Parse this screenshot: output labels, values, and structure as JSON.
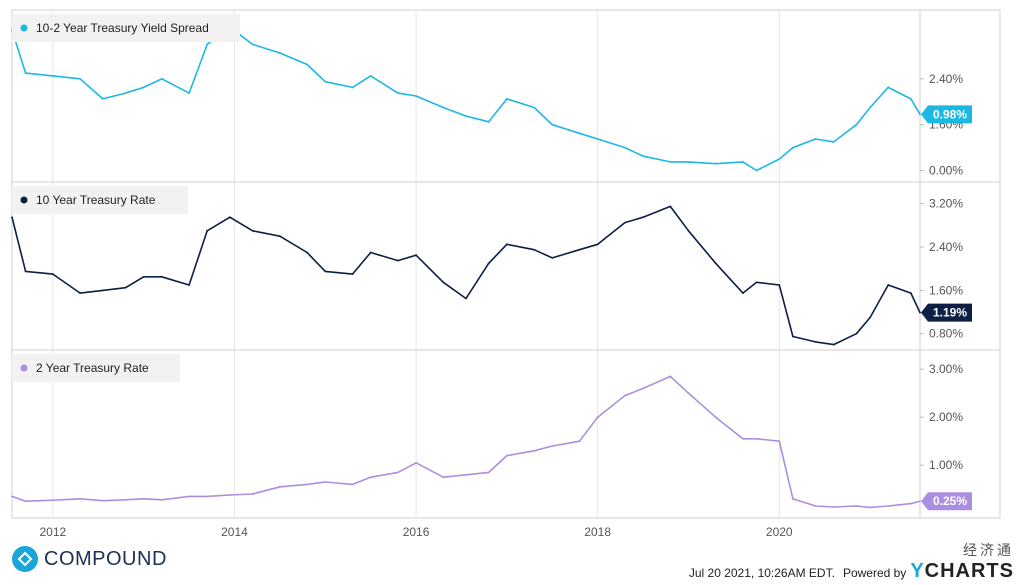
{
  "chart_data": [
    {
      "type": "line",
      "legend": "10-2 Year Treasury Yield Spread",
      "color": "#1cb8e4",
      "unit": "%",
      "ylim": [
        -0.2,
        2.8
      ],
      "yticks": [
        0.0,
        0.8,
        1.6,
        2.4
      ],
      "ytick_labels": [
        "0.00%",
        "1.60%",
        "2.40%"
      ],
      "last_value_label": "0.98%",
      "x": [
        2011.55,
        2011.7,
        2012.0,
        2012.3,
        2012.55,
        2012.8,
        2013.0,
        2013.2,
        2013.5,
        2013.7,
        2013.95,
        2014.2,
        2014.5,
        2014.8,
        2015.0,
        2015.3,
        2015.5,
        2015.8,
        2016.0,
        2016.3,
        2016.55,
        2016.8,
        2017.0,
        2017.3,
        2017.5,
        2017.8,
        2018.0,
        2018.3,
        2018.5,
        2018.8,
        2019.0,
        2019.3,
        2019.6,
        2019.75,
        2020.0,
        2020.15,
        2020.4,
        2020.6,
        2020.85,
        2021.0,
        2021.2,
        2021.45,
        2021.55
      ],
      "y": [
        2.45,
        1.7,
        1.65,
        1.6,
        1.25,
        1.35,
        1.45,
        1.6,
        1.35,
        2.2,
        2.5,
        2.2,
        2.05,
        1.85,
        1.55,
        1.45,
        1.65,
        1.35,
        1.3,
        1.1,
        0.95,
        0.85,
        1.25,
        1.1,
        0.8,
        0.65,
        0.55,
        0.4,
        0.25,
        0.15,
        0.15,
        0.12,
        0.15,
        0.0,
        0.2,
        0.4,
        0.55,
        0.5,
        0.8,
        1.1,
        1.45,
        1.25,
        0.98
      ]
    },
    {
      "type": "line",
      "legend": "10 Year Treasury Rate",
      "color": "#0d1f44",
      "unit": "%",
      "ylim": [
        0.5,
        3.6
      ],
      "yticks": [
        0.8,
        1.6,
        2.4,
        3.2
      ],
      "ytick_labels": [
        "0.80%",
        "1.60%",
        "2.40%",
        "3.20%"
      ],
      "last_value_label": "1.19%",
      "x": [
        2011.55,
        2011.7,
        2012.0,
        2012.3,
        2012.55,
        2012.8,
        2013.0,
        2013.2,
        2013.5,
        2013.7,
        2013.95,
        2014.2,
        2014.5,
        2014.8,
        2015.0,
        2015.3,
        2015.5,
        2015.8,
        2016.0,
        2016.3,
        2016.55,
        2016.8,
        2017.0,
        2017.3,
        2017.5,
        2017.8,
        2018.0,
        2018.3,
        2018.5,
        2018.8,
        2019.0,
        2019.3,
        2019.6,
        2019.75,
        2020.0,
        2020.15,
        2020.4,
        2020.6,
        2020.85,
        2021.0,
        2021.2,
        2021.45,
        2021.55
      ],
      "y": [
        2.95,
        1.95,
        1.9,
        1.55,
        1.6,
        1.65,
        1.85,
        1.85,
        1.7,
        2.7,
        2.95,
        2.7,
        2.6,
        2.3,
        1.95,
        1.9,
        2.3,
        2.15,
        2.25,
        1.75,
        1.45,
        2.1,
        2.45,
        2.35,
        2.2,
        2.35,
        2.45,
        2.85,
        2.95,
        3.15,
        2.7,
        2.1,
        1.55,
        1.75,
        1.7,
        0.75,
        0.65,
        0.6,
        0.8,
        1.1,
        1.7,
        1.55,
        1.19
      ]
    },
    {
      "type": "line",
      "legend": "2 Year Treasury Rate",
      "color": "#ab8fde",
      "unit": "%",
      "ylim": [
        -0.1,
        3.4
      ],
      "yticks": [
        1.0,
        2.0,
        3.0
      ],
      "ytick_labels": [
        "1.00%",
        "2.00%",
        "3.00%"
      ],
      "last_value_label": "0.25%",
      "x": [
        2011.55,
        2011.7,
        2012.0,
        2012.3,
        2012.55,
        2012.8,
        2013.0,
        2013.2,
        2013.5,
        2013.7,
        2013.95,
        2014.2,
        2014.5,
        2014.8,
        2015.0,
        2015.3,
        2015.5,
        2015.8,
        2016.0,
        2016.3,
        2016.55,
        2016.8,
        2017.0,
        2017.3,
        2017.5,
        2017.8,
        2018.0,
        2018.3,
        2018.5,
        2018.8,
        2019.0,
        2019.3,
        2019.6,
        2019.75,
        2020.0,
        2020.15,
        2020.4,
        2020.6,
        2020.85,
        2021.0,
        2021.2,
        2021.45,
        2021.55
      ],
      "y": [
        0.35,
        0.25,
        0.27,
        0.3,
        0.26,
        0.28,
        0.3,
        0.28,
        0.35,
        0.35,
        0.38,
        0.4,
        0.55,
        0.6,
        0.65,
        0.6,
        0.75,
        0.85,
        1.05,
        0.75,
        0.8,
        0.85,
        1.2,
        1.3,
        1.4,
        1.5,
        2.0,
        2.45,
        2.6,
        2.85,
        2.5,
        2.0,
        1.55,
        1.55,
        1.5,
        0.3,
        0.15,
        0.13,
        0.15,
        0.12,
        0.15,
        0.2,
        0.25
      ]
    }
  ],
  "x_axis": {
    "range": [
      2011.55,
      2021.55
    ],
    "ticks": [
      2012,
      2014,
      2016,
      2018,
      2020
    ],
    "tick_labels": [
      "2012",
      "2014",
      "2016",
      "2018",
      "2020"
    ]
  },
  "footer": {
    "brand": "COMPOUND",
    "timestamp": "Jul 20 2021, 10:26AM EDT.",
    "powered_by": "Powered by",
    "ycharts_y": "Y",
    "ycharts_rest": "CHARTS",
    "watermark": "经济通"
  }
}
